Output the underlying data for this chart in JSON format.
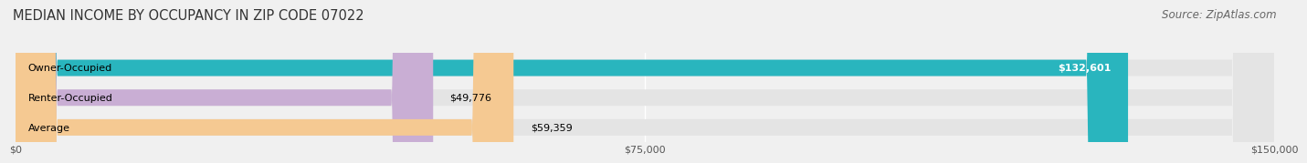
{
  "title": "MEDIAN INCOME BY OCCUPANCY IN ZIP CODE 07022",
  "source": "Source: ZipAtlas.com",
  "categories": [
    "Owner-Occupied",
    "Renter-Occupied",
    "Average"
  ],
  "values": [
    132601,
    49776,
    59359
  ],
  "bar_colors": [
    "#29b5be",
    "#c9aed4",
    "#f5c992"
  ],
  "value_labels": [
    "$132,601",
    "$49,776",
    "$59,359"
  ],
  "xlim": [
    0,
    150000
  ],
  "xticks": [
    0,
    75000,
    150000
  ],
  "xtick_labels": [
    "$0",
    "$75,000",
    "$150,000"
  ],
  "background_color": "#f0f0f0",
  "bar_bg_color": "#e4e4e4",
  "title_fontsize": 10.5,
  "source_fontsize": 8.5,
  "label_fontsize": 8.0,
  "value_fontsize": 8.0,
  "tick_fontsize": 8.0
}
